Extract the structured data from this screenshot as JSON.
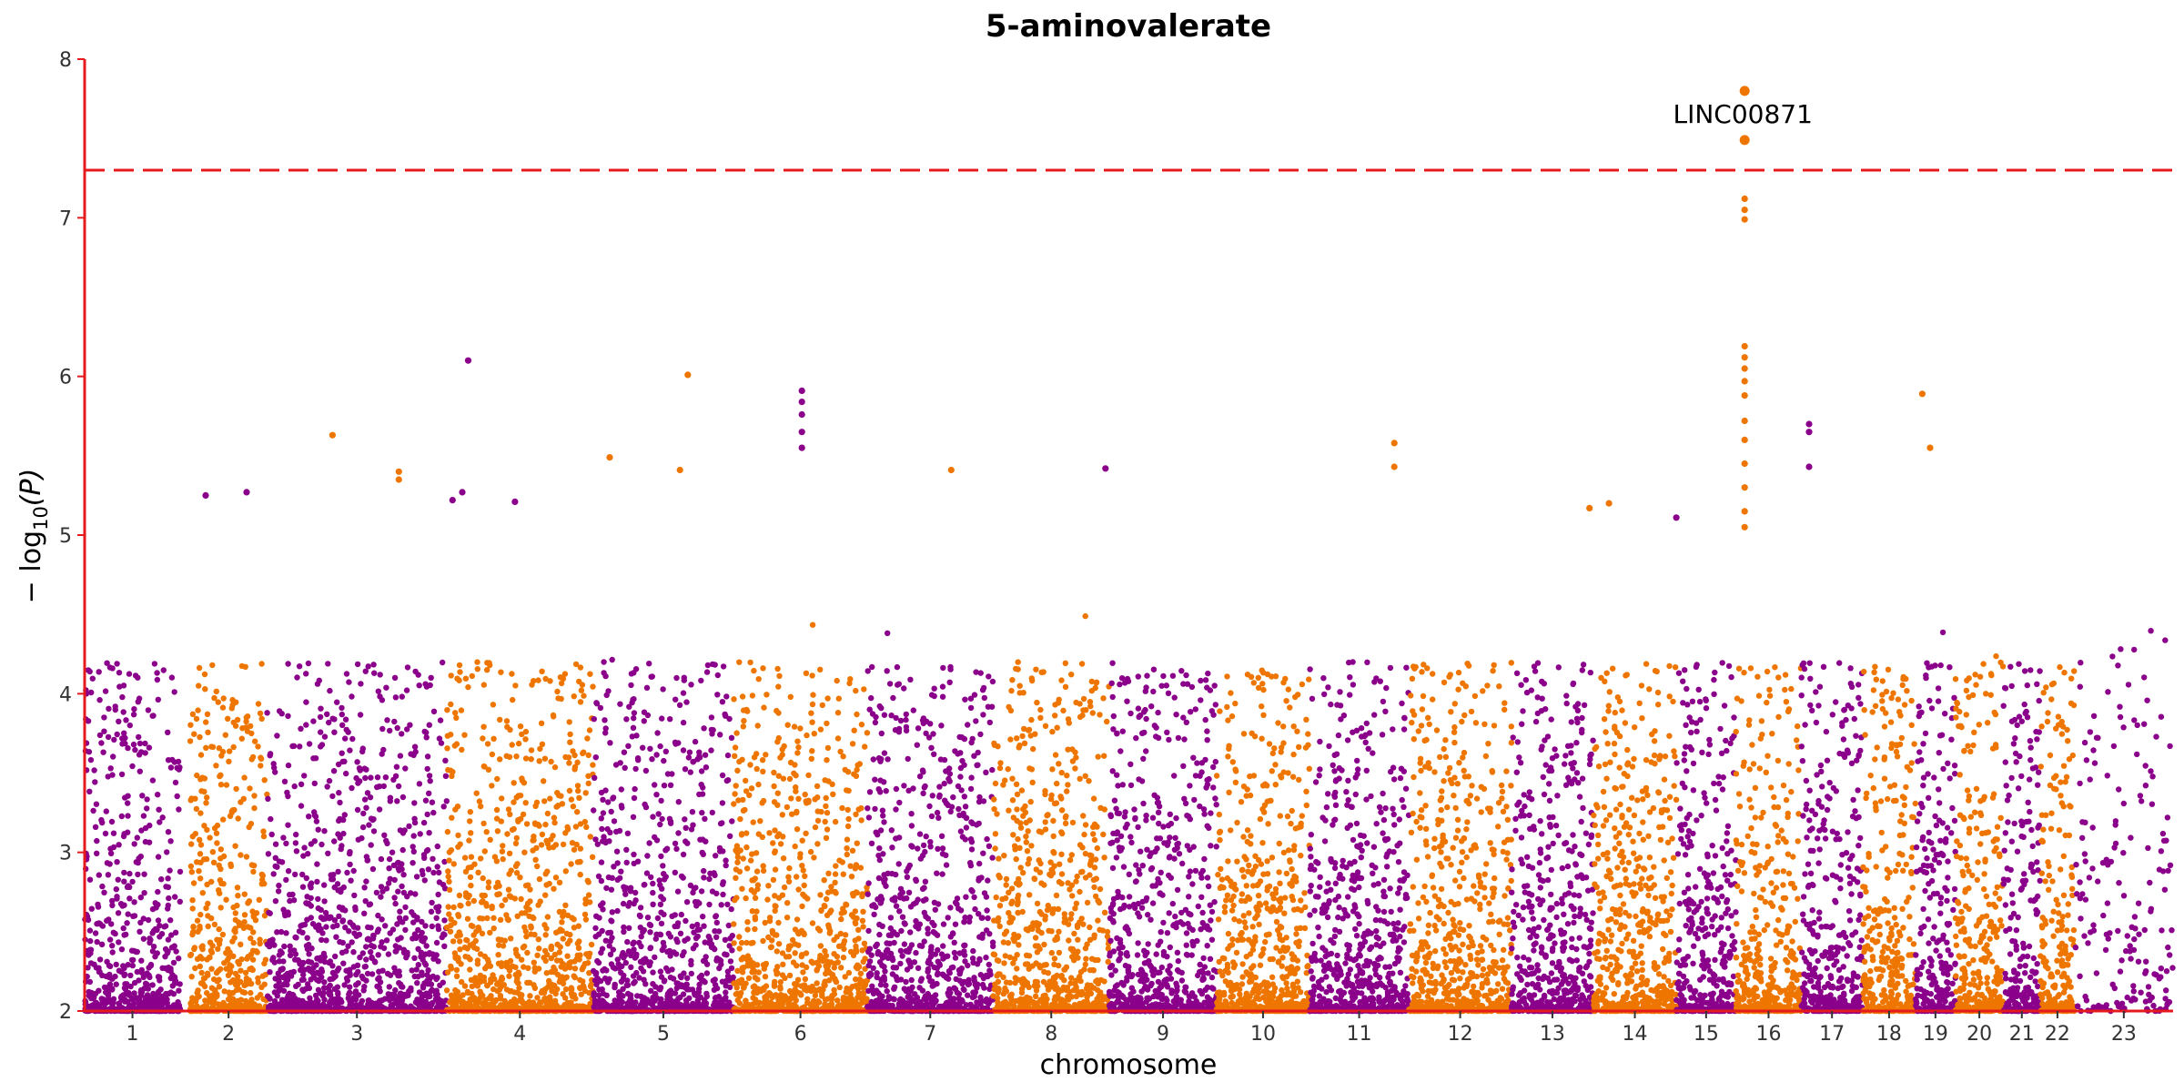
{
  "chart_data": {
    "type": "scatter",
    "subtype": "manhattan",
    "title": "5-aminovalerate",
    "xlabel": "chromosome",
    "ylabel": "− log10(P)",
    "ylabel_base": "− log",
    "ylabel_sub": "10",
    "ylabel_arg": "(P)",
    "ylim": [
      2,
      8
    ],
    "yticks": [
      "2",
      "3",
      "4",
      "5",
      "6",
      "7",
      "8"
    ],
    "chromosomes": [
      "1",
      "2",
      "3",
      "4",
      "5",
      "6",
      "7",
      "8",
      "9",
      "10",
      "11",
      "12",
      "13",
      "14",
      "15",
      "16",
      "17",
      "18",
      "19",
      "20",
      "21",
      "22",
      "23"
    ],
    "chromosome_spans": [
      {
        "start": 0.0,
        "end": 98.0
      },
      {
        "start": 108.0,
        "end": 187.0
      },
      {
        "start": 187.0,
        "end": 371.0
      },
      {
        "start": 371.0,
        "end": 521.0
      },
      {
        "start": 521.0,
        "end": 665.0
      },
      {
        "start": 665.0,
        "end": 802.0
      },
      {
        "start": 802.0,
        "end": 931.0
      },
      {
        "start": 931.0,
        "end": 1050.0
      },
      {
        "start": 1050.0,
        "end": 1160.0
      },
      {
        "start": 1160.0,
        "end": 1255.0
      },
      {
        "start": 1255.0,
        "end": 1357.0
      },
      {
        "start": 1357.0,
        "end": 1462.0
      },
      {
        "start": 1462.0,
        "end": 1546.0
      },
      {
        "start": 1546.0,
        "end": 1631.0
      },
      {
        "start": 1631.0,
        "end": 1692.0
      },
      {
        "start": 1692.0,
        "end": 1759.0
      },
      {
        "start": 1759.0,
        "end": 1822.0
      },
      {
        "start": 1822.0,
        "end": 1876.0
      },
      {
        "start": 1876.0,
        "end": 1917.0
      },
      {
        "start": 1917.0,
        "end": 1966.0
      },
      {
        "start": 1966.0,
        "end": 2004.0
      },
      {
        "start": 2004.0,
        "end": 2039.0
      },
      {
        "start": 2039.0,
        "end": 2140.0
      }
    ],
    "series_colors": [
      "#8b008b",
      "#ee7600"
    ],
    "threshold": {
      "y": 7.3,
      "color": "#e41a1c",
      "style": "dashed"
    },
    "annotations": [
      {
        "label": "LINC00871",
        "chromosome": "14",
        "x": 1701,
        "y": 7.8
      }
    ],
    "peak_points": [
      {
        "chr": "14",
        "x": 1701,
        "y": 7.8
      },
      {
        "chr": "14",
        "x": 1701,
        "y": 7.49
      },
      {
        "chr": "14",
        "x": 1701,
        "y": 7.12
      },
      {
        "chr": "14",
        "x": 1701,
        "y": 7.05
      },
      {
        "chr": "14",
        "x": 1701,
        "y": 6.99
      },
      {
        "chr": "14",
        "x": 1701,
        "y": 6.19
      },
      {
        "chr": "14",
        "x": 1701,
        "y": 6.12
      },
      {
        "chr": "14",
        "x": 1701,
        "y": 6.05
      },
      {
        "chr": "14",
        "x": 1701,
        "y": 5.97
      },
      {
        "chr": "14",
        "x": 1701,
        "y": 5.88
      },
      {
        "chr": "14",
        "x": 1701,
        "y": 5.72
      },
      {
        "chr": "14",
        "x": 1701,
        "y": 5.6
      },
      {
        "chr": "14",
        "x": 1701,
        "y": 5.45
      },
      {
        "chr": "14",
        "x": 1701,
        "y": 5.3
      },
      {
        "chr": "14",
        "x": 1701,
        "y": 5.15
      },
      {
        "chr": "14",
        "x": 1701,
        "y": 5.05
      },
      {
        "chr": "3",
        "x": 393,
        "y": 6.1
      },
      {
        "chr": "4",
        "x": 618,
        "y": 6.01
      },
      {
        "chr": "5",
        "x": 735,
        "y": 5.91
      },
      {
        "chr": "5",
        "x": 735,
        "y": 5.84
      },
      {
        "chr": "5",
        "x": 735,
        "y": 5.76
      },
      {
        "chr": "5",
        "x": 735,
        "y": 5.65
      },
      {
        "chr": "5",
        "x": 735,
        "y": 5.55
      },
      {
        "chr": "16",
        "x": 1883,
        "y": 5.89
      },
      {
        "chr": "16",
        "x": 1891,
        "y": 5.55
      },
      {
        "chr": "15",
        "x": 1767,
        "y": 5.7
      },
      {
        "chr": "15",
        "x": 1767,
        "y": 5.65
      },
      {
        "chr": "15",
        "x": 1767,
        "y": 5.43
      },
      {
        "chr": "2",
        "x": 254,
        "y": 5.63
      },
      {
        "chr": "10",
        "x": 1342,
        "y": 5.58
      },
      {
        "chr": "10",
        "x": 1342,
        "y": 5.43
      },
      {
        "chr": "4",
        "x": 538,
        "y": 5.49
      },
      {
        "chr": "6",
        "x": 888,
        "y": 5.41
      },
      {
        "chr": "7",
        "x": 1046,
        "y": 5.42
      },
      {
        "chr": "2",
        "x": 322,
        "y": 5.4
      },
      {
        "chr": "2",
        "x": 322,
        "y": 5.35
      },
      {
        "chr": "4",
        "x": 610,
        "y": 5.41
      },
      {
        "chr": "12",
        "x": 1562,
        "y": 5.2
      },
      {
        "chr": "12",
        "x": 1542,
        "y": 5.17
      },
      {
        "chr": "1",
        "x": 166,
        "y": 5.27
      },
      {
        "chr": "3",
        "x": 387,
        "y": 5.27
      },
      {
        "chr": "3",
        "x": 377,
        "y": 5.22
      },
      {
        "chr": "3",
        "x": 441,
        "y": 5.21
      },
      {
        "chr": "1",
        "x": 124,
        "y": 5.25
      },
      {
        "chr": "13",
        "x": 1631,
        "y": 5.11
      }
    ]
  }
}
